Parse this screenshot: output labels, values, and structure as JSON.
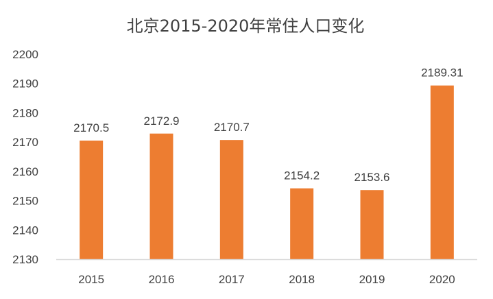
{
  "chart_data": {
    "type": "bar",
    "title": "北京2015-2020年常住人口变化",
    "categories": [
      "2015",
      "2016",
      "2017",
      "2018",
      "2019",
      "2020"
    ],
    "values": [
      2170.5,
      2172.9,
      2170.7,
      2154.2,
      2153.6,
      2189.31
    ],
    "data_labels": [
      "2170.5",
      "2172.9",
      "2170.7",
      "2154.2",
      "2153.6",
      "2189.31"
    ],
    "xlabel": "",
    "ylabel": "",
    "ylim": [
      2130,
      2200
    ],
    "yticks": [
      "2130",
      "2140",
      "2150",
      "2160",
      "2170",
      "2180",
      "2190",
      "2200"
    ],
    "grid": false,
    "bar_color": "#ED7D31",
    "axis_color": "#D9D9D9",
    "text_color": "#404040"
  }
}
